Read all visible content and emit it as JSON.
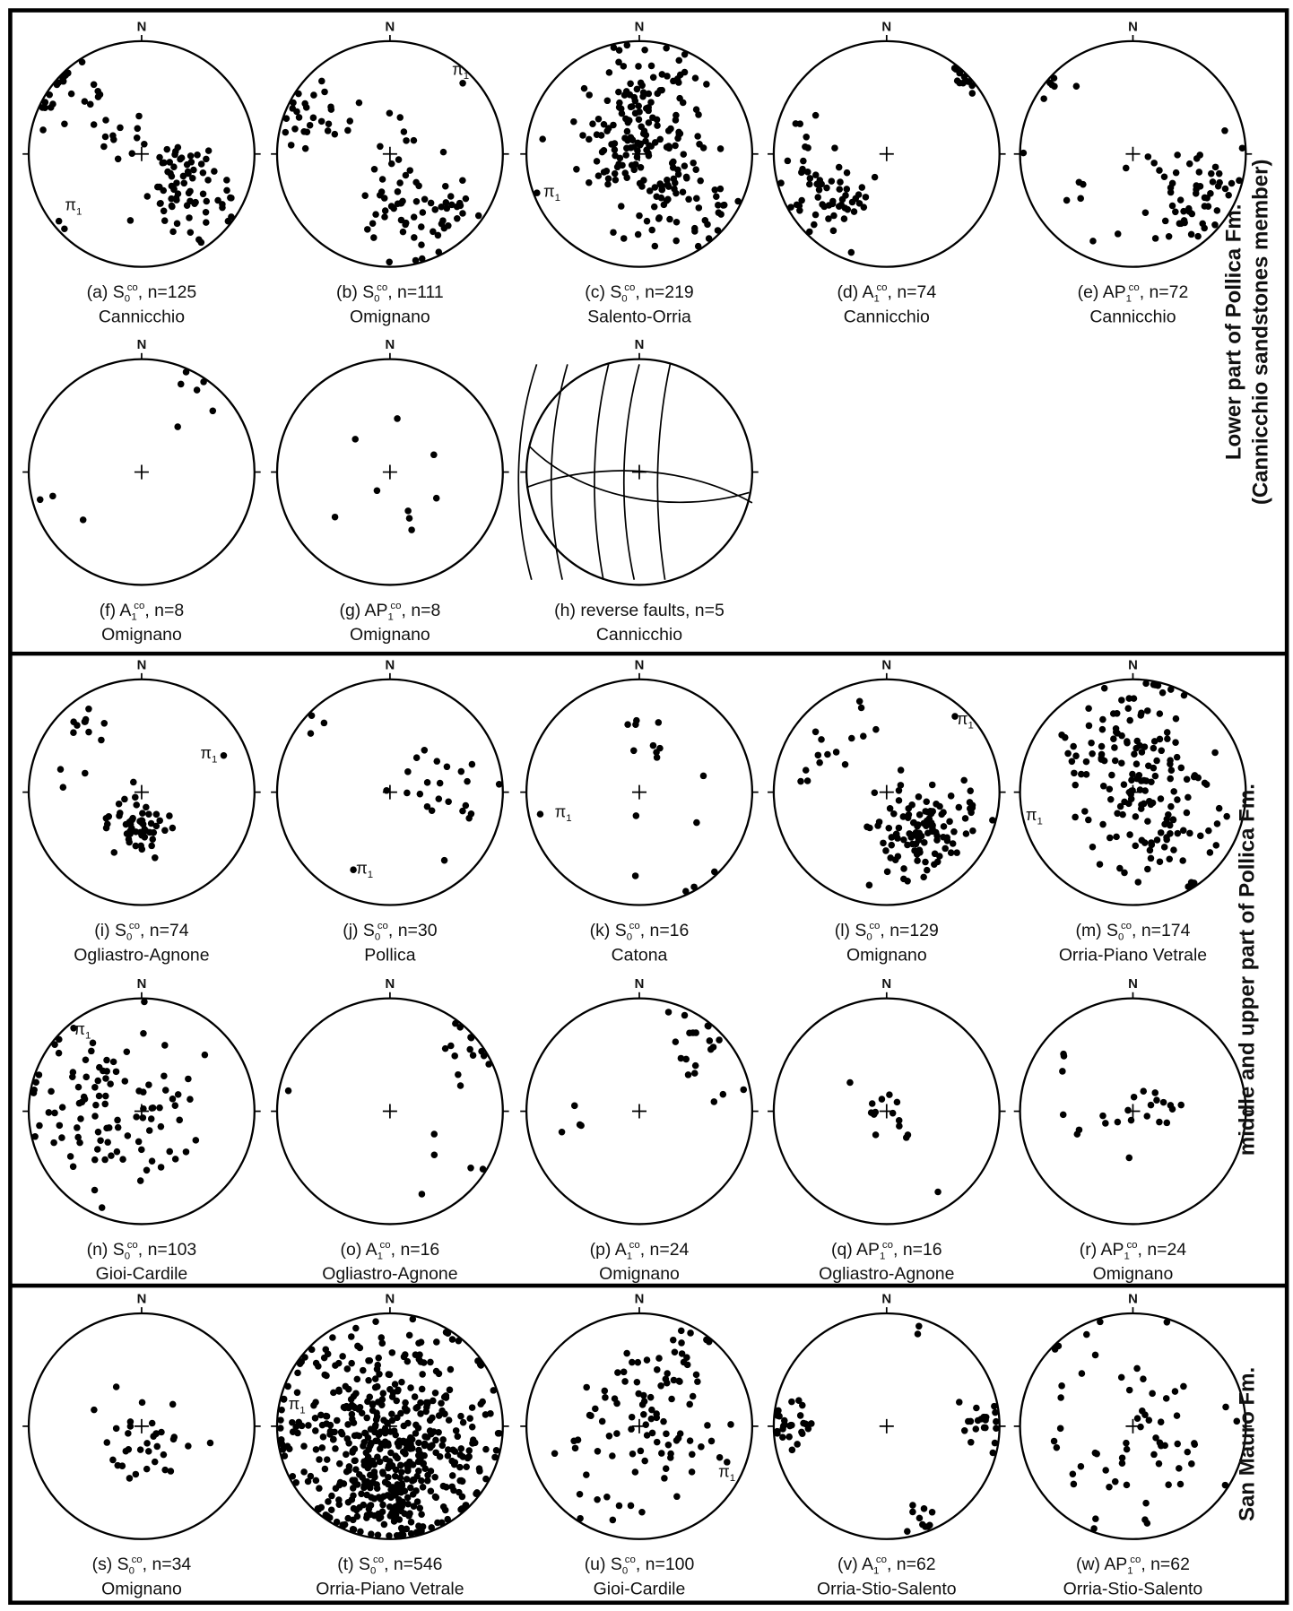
{
  "north": "N",
  "sections": [
    {
      "title_lines": [
        "Lower part of Pollica Fm.",
        "(Cannicchio sandstones member)"
      ],
      "panels": [
        {
          "label": "(a) S",
          "sub": "0",
          "sup": "co",
          "rest": ", n=125",
          "site": "Cannicchio",
          "pole": "π",
          "pole_sub": "1"
        },
        {
          "label": "(b) S",
          "sub": "0",
          "sup": "co",
          "rest": ", n=111",
          "site": "Omignano",
          "pole": "π",
          "pole_sub": "1"
        },
        {
          "label": "(c) S",
          "sub": "0",
          "sup": "co",
          "rest": ", n=219",
          "site": "Salento-Orria",
          "pole": "π",
          "pole_sub": "1"
        },
        {
          "label": "(d) A",
          "sub": "1",
          "sup": "co",
          "rest": ", n=74",
          "site": "Cannicchio"
        },
        {
          "label": "(e) AP",
          "sub": "1",
          "sup": "co",
          "rest": ", n=72",
          "site": "Cannicchio"
        },
        {
          "label": "(f) A",
          "sub": "1",
          "sup": "co",
          "rest": ", n=8",
          "site": "Omignano"
        },
        {
          "label": "(g) AP",
          "sub": "1",
          "sup": "co",
          "rest": ", n=8",
          "site": "Omignano"
        },
        {
          "label": "(h) reverse faults, n=5",
          "site": "Cannicchio"
        }
      ]
    },
    {
      "title_lines": [
        "middle and upper part of Pollica Fm."
      ],
      "panels": [
        {
          "label": "(i) S",
          "sub": "0",
          "sup": "co",
          "rest": ", n=74",
          "site": "Ogliastro-Agnone",
          "pole": "π",
          "pole_sub": "1"
        },
        {
          "label": "(j) S",
          "sub": "0",
          "sup": "co",
          "rest": ", n=30",
          "site": "Pollica",
          "pole": "π",
          "pole_sub": "1"
        },
        {
          "label": "(k) S",
          "sub": "0",
          "sup": "co",
          "rest": ", n=16",
          "site": "Catona",
          "pole": "π",
          "pole_sub": "1"
        },
        {
          "label": "(l) S",
          "sub": "0",
          "sup": "co",
          "rest": ", n=129",
          "site": "Omignano",
          "pole": "π",
          "pole_sub": "1"
        },
        {
          "label": "(m) S",
          "sub": "0",
          "sup": "co",
          "rest": ", n=174",
          "site": "Orria-Piano Vetrale",
          "pole": "π",
          "pole_sub": "1"
        },
        {
          "label": "(n) S",
          "sub": "0",
          "sup": "co",
          "rest": ", n=103",
          "site": "Gioi-Cardile",
          "pole": "π",
          "pole_sub": "1"
        },
        {
          "label": "(o) A",
          "sub": "1",
          "sup": "co",
          "rest": ", n=16",
          "site": "Ogliastro-Agnone"
        },
        {
          "label": "(p) A",
          "sub": "1",
          "sup": "co",
          "rest": ", n=24",
          "site": "Omignano"
        },
        {
          "label": "(q) AP",
          "sub": "1",
          "sup": "co",
          "rest": ", n=16",
          "site": "Ogliastro-Agnone"
        },
        {
          "label": "(r) AP",
          "sub": "1",
          "sup": "co",
          "rest": ", n=24",
          "site": "Omignano"
        }
      ]
    },
    {
      "title_lines": [
        "San Mauro Fm."
      ],
      "panels": [
        {
          "label": "(s) S",
          "sub": "0",
          "sup": "co",
          "rest": ", n=34",
          "site": "Omignano"
        },
        {
          "label": "(t) S",
          "sub": "0",
          "sup": "co",
          "rest": ", n=546",
          "site": "Orria-Piano Vetrale",
          "pole": "π",
          "pole_sub": "1"
        },
        {
          "label": "(u) S",
          "sub": "0",
          "sup": "co",
          "rest": ", n=100",
          "site": "Gioi-Cardile",
          "pole": "π",
          "pole_sub": "1"
        },
        {
          "label": "(v) A",
          "sub": "1",
          "sup": "co",
          "rest": ", n=62",
          "site": "Orria-Stio-Salento"
        },
        {
          "label": "(w) AP",
          "sub": "1",
          "sup": "co",
          "rest": ", n=62",
          "site": "Orria-Stio-Salento"
        }
      ]
    }
  ]
}
